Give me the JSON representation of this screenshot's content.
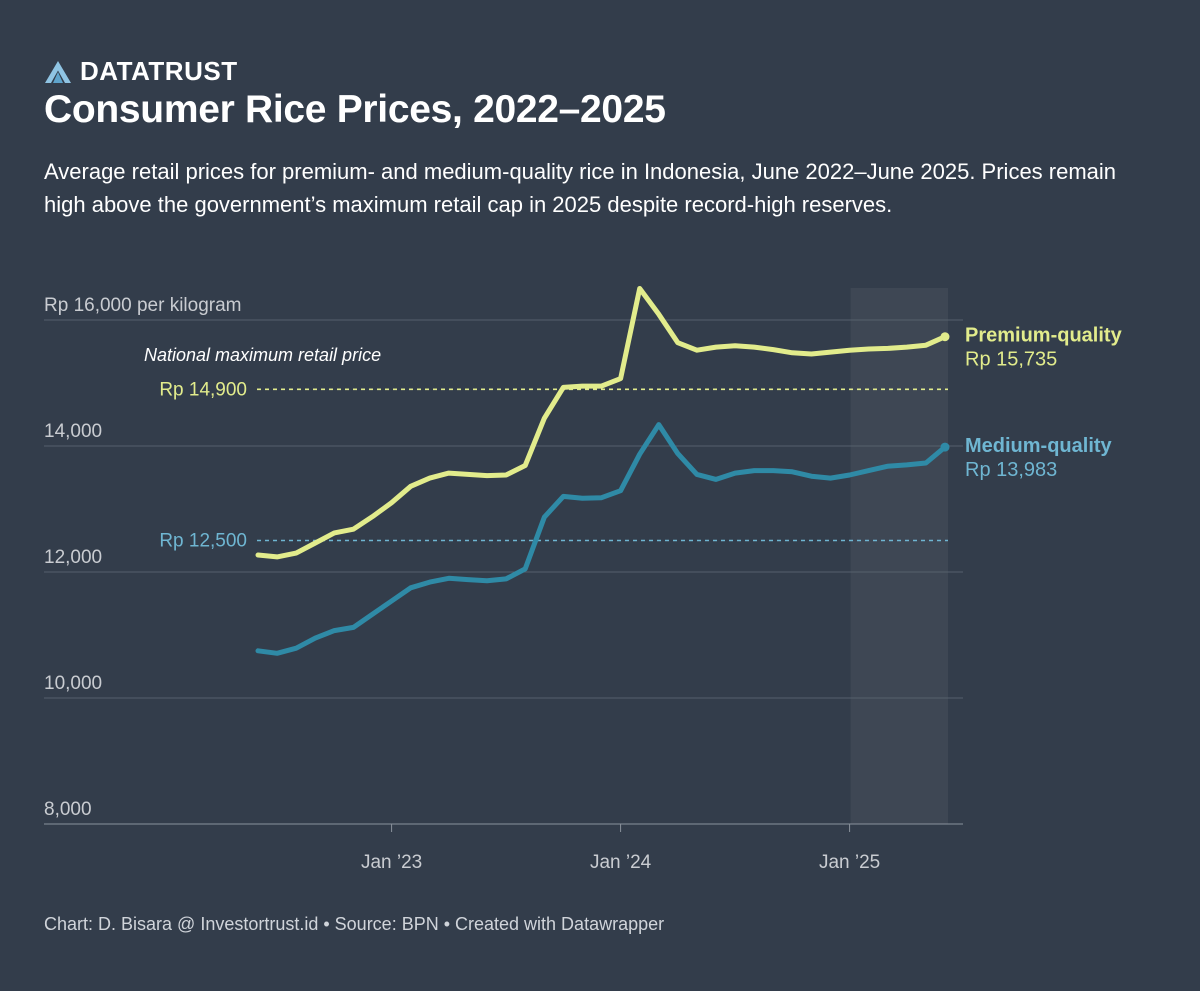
{
  "brand": {
    "name": "DATATRUST",
    "icon": "brand-logo-icon"
  },
  "title": "Consumer Rice Prices, 2022–2025",
  "subtitle": "Average retail prices for premium- and medium-quality rice in Indonesia, June 2022–June 2025. Prices remain high above the government’s maximum retail cap in 2025 despite record-high reserves.",
  "footer": "Chart: D. Bisara @ Investortrust.id • Source: BPN • Created with Datawrapper",
  "colors": {
    "background": "#333d4b",
    "premium": "#e2ec8c",
    "medium": "#2f8aa6",
    "medium_label": "#6fb6d2",
    "grid": "#56606d",
    "tick_text": "#c9ccd1"
  },
  "chart_data": {
    "type": "line",
    "ylabel": "Rp 16,000 per kilogram",
    "ylim": [
      8000,
      16000
    ],
    "y_ticks": [
      {
        "value": 16000,
        "label": "Rp 16,000 per kilogram"
      },
      {
        "value": 14000,
        "label": "14,000"
      },
      {
        "value": 12000,
        "label": "12,000"
      },
      {
        "value": 10000,
        "label": "10,000"
      },
      {
        "value": 8000,
        "label": "8,000"
      }
    ],
    "x_range": [
      "2022-06",
      "2025-06"
    ],
    "x_ticks": [
      {
        "date": "2023-01",
        "label": "Jan ’23"
      },
      {
        "date": "2024-01",
        "label": "Jan ’24"
      },
      {
        "date": "2025-01",
        "label": "Jan ’25"
      }
    ],
    "x": [
      "2022-06",
      "2022-07",
      "2022-08",
      "2022-09",
      "2022-10",
      "2022-11",
      "2022-12",
      "2023-01",
      "2023-02",
      "2023-03",
      "2023-04",
      "2023-05",
      "2023-06",
      "2023-07",
      "2023-08",
      "2023-09",
      "2023-10",
      "2023-11",
      "2023-12",
      "2024-01",
      "2024-02",
      "2024-03",
      "2024-04",
      "2024-05",
      "2024-06",
      "2024-07",
      "2024-08",
      "2024-09",
      "2024-10",
      "2024-11",
      "2024-12",
      "2025-01",
      "2025-02",
      "2025-03",
      "2025-04",
      "2025-05",
      "2025-06"
    ],
    "series": [
      {
        "name": "Premium-quality",
        "end_label": "Rp 15,735",
        "values": [
          12270,
          12240,
          12300,
          12460,
          12620,
          12680,
          12880,
          13100,
          13360,
          13490,
          13570,
          13550,
          13530,
          13540,
          13690,
          14440,
          14930,
          14950,
          14950,
          15070,
          16500,
          16090,
          15640,
          15520,
          15570,
          15590,
          15570,
          15530,
          15480,
          15460,
          15490,
          15520,
          15540,
          15550,
          15570,
          15600,
          15735
        ]
      },
      {
        "name": "Medium-quality",
        "end_label": "Rp 13,983",
        "values": [
          10750,
          10710,
          10790,
          10950,
          11070,
          11120,
          11330,
          11540,
          11750,
          11840,
          11900,
          11880,
          11860,
          11890,
          12050,
          12870,
          13200,
          13170,
          13180,
          13290,
          13870,
          14340,
          13880,
          13550,
          13470,
          13570,
          13610,
          13610,
          13590,
          13520,
          13490,
          13540,
          13610,
          13680,
          13700,
          13730,
          13983
        ]
      }
    ],
    "reference_lines": [
      {
        "value": 14900,
        "label": "Rp 14,900",
        "series": "Premium-quality"
      },
      {
        "value": 12500,
        "label": "Rp 12,500",
        "series": "Medium-quality"
      }
    ],
    "annotation": "National maximum retail price",
    "shaded_period": [
      "2025-01",
      "2025-06"
    ],
    "grid": true,
    "legend": "direct labels at line ends"
  }
}
